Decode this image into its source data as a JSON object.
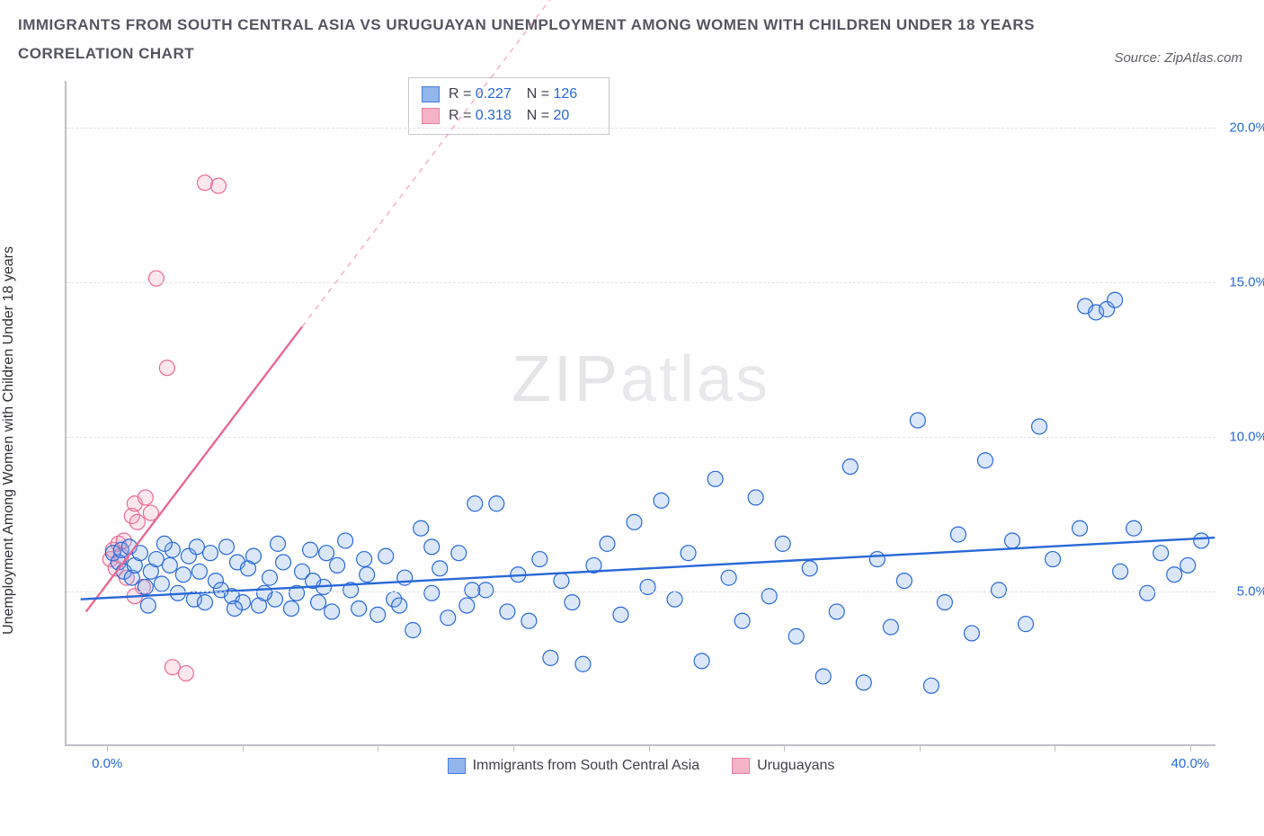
{
  "title_line1": "IMMIGRANTS FROM SOUTH CENTRAL ASIA VS URUGUAYAN UNEMPLOYMENT AMONG WOMEN WITH CHILDREN UNDER 18 YEARS",
  "title_line2": "CORRELATION CHART",
  "source_label": "Source: ZipAtlas.com",
  "y_axis_label": "Unemployment Among Women with Children Under 18 years",
  "watermark_a": "ZIP",
  "watermark_b": "atlas",
  "chart": {
    "type": "scatter",
    "background_color": "#ffffff",
    "grid_color": "#e2e2e8",
    "axis_color": "#bfbfc8",
    "tick_label_color": "#2968d8",
    "xlim": [
      -1.5,
      41
    ],
    "ylim": [
      0,
      21.5
    ],
    "y_ticks": [
      5,
      10,
      15,
      20
    ],
    "y_tick_labels": [
      "5.0%",
      "10.0%",
      "15.0%",
      "20.0%"
    ],
    "x_tick_positions": [
      0,
      5,
      10,
      15,
      20,
      25,
      30,
      35,
      40
    ],
    "x_tick_labels": {
      "0": "0.0%",
      "40": "40.0%"
    },
    "marker_radius": 8.5,
    "marker_stroke_width": 1.2,
    "marker_fill_opacity": 0.28,
    "trend_line_width": 2.4,
    "trend_dash_width": 1.4
  },
  "series": [
    {
      "key": "sca",
      "label": "Immigrants from South Central Asia",
      "fill_color": "#7fa9e8",
      "stroke_color": "#2968d8",
      "trend": {
        "x1": -1,
        "y1": 4.7,
        "x2": 41,
        "y2": 6.7,
        "dash_from_x": null
      },
      "stats": {
        "R": "0.227",
        "N": "126"
      },
      "points": [
        [
          0.2,
          6.2
        ],
        [
          0.4,
          5.9
        ],
        [
          0.5,
          6.3
        ],
        [
          0.6,
          5.6
        ],
        [
          0.8,
          6.4
        ],
        [
          0.9,
          5.4
        ],
        [
          1.0,
          5.8
        ],
        [
          1.2,
          6.2
        ],
        [
          1.4,
          5.1
        ],
        [
          1.6,
          5.6
        ],
        [
          1.8,
          6.0
        ],
        [
          2.0,
          5.2
        ],
        [
          2.3,
          5.8
        ],
        [
          2.4,
          6.3
        ],
        [
          2.6,
          4.9
        ],
        [
          2.8,
          5.5
        ],
        [
          3.0,
          6.1
        ],
        [
          3.2,
          4.7
        ],
        [
          3.4,
          5.6
        ],
        [
          3.6,
          4.6
        ],
        [
          3.8,
          6.2
        ],
        [
          4.0,
          5.3
        ],
        [
          4.2,
          5.0
        ],
        [
          4.4,
          6.4
        ],
        [
          4.6,
          4.8
        ],
        [
          4.8,
          5.9
        ],
        [
          5.0,
          4.6
        ],
        [
          5.2,
          5.7
        ],
        [
          5.4,
          6.1
        ],
        [
          5.6,
          4.5
        ],
        [
          6.0,
          5.4
        ],
        [
          6.2,
          4.7
        ],
        [
          6.5,
          5.9
        ],
        [
          6.8,
          4.4
        ],
        [
          7.0,
          4.9
        ],
        [
          7.2,
          5.6
        ],
        [
          7.5,
          6.3
        ],
        [
          7.8,
          4.6
        ],
        [
          8.0,
          5.1
        ],
        [
          8.3,
          4.3
        ],
        [
          8.5,
          5.8
        ],
        [
          8.8,
          6.6
        ],
        [
          9.0,
          5.0
        ],
        [
          9.3,
          4.4
        ],
        [
          9.6,
          5.5
        ],
        [
          10.0,
          4.2
        ],
        [
          10.3,
          6.1
        ],
        [
          10.6,
          4.7
        ],
        [
          11.0,
          5.4
        ],
        [
          11.3,
          3.7
        ],
        [
          11.6,
          7.0
        ],
        [
          12.0,
          4.9
        ],
        [
          12.3,
          5.7
        ],
        [
          12.6,
          4.1
        ],
        [
          13.0,
          6.2
        ],
        [
          13.3,
          4.5
        ],
        [
          13.6,
          7.8
        ],
        [
          14.0,
          5.0
        ],
        [
          14.4,
          7.8
        ],
        [
          14.8,
          4.3
        ],
        [
          15.2,
          5.5
        ],
        [
          15.6,
          4.0
        ],
        [
          16.0,
          6.0
        ],
        [
          16.4,
          2.8
        ],
        [
          16.8,
          5.3
        ],
        [
          17.2,
          4.6
        ],
        [
          17.6,
          2.6
        ],
        [
          18.0,
          5.8
        ],
        [
          18.5,
          6.5
        ],
        [
          19.0,
          4.2
        ],
        [
          19.5,
          7.2
        ],
        [
          20.0,
          5.1
        ],
        [
          20.5,
          7.9
        ],
        [
          21.0,
          4.7
        ],
        [
          21.5,
          6.2
        ],
        [
          22.0,
          2.7
        ],
        [
          22.5,
          8.6
        ],
        [
          23.0,
          5.4
        ],
        [
          23.5,
          4.0
        ],
        [
          24.0,
          8.0
        ],
        [
          24.5,
          4.8
        ],
        [
          25.0,
          6.5
        ],
        [
          25.5,
          3.5
        ],
        [
          26.0,
          5.7
        ],
        [
          26.5,
          2.2
        ],
        [
          27.0,
          4.3
        ],
        [
          27.5,
          9.0
        ],
        [
          28.0,
          2.0
        ],
        [
          28.5,
          6.0
        ],
        [
          29.0,
          3.8
        ],
        [
          29.5,
          5.3
        ],
        [
          30.0,
          10.5
        ],
        [
          30.5,
          1.9
        ],
        [
          31.0,
          4.6
        ],
        [
          31.5,
          6.8
        ],
        [
          32.0,
          3.6
        ],
        [
          32.5,
          9.2
        ],
        [
          33.0,
          5.0
        ],
        [
          33.5,
          6.6
        ],
        [
          34.0,
          3.9
        ],
        [
          34.5,
          10.3
        ],
        [
          35.0,
          6.0
        ],
        [
          36.0,
          7.0
        ],
        [
          36.2,
          14.2
        ],
        [
          36.6,
          14.0
        ],
        [
          37.0,
          14.1
        ],
        [
          37.3,
          14.4
        ],
        [
          37.5,
          5.6
        ],
        [
          38.0,
          7.0
        ],
        [
          38.5,
          4.9
        ],
        [
          39.0,
          6.2
        ],
        [
          39.5,
          5.5
        ],
        [
          40.0,
          5.8
        ],
        [
          40.5,
          6.6
        ],
        [
          1.5,
          4.5
        ],
        [
          2.1,
          6.5
        ],
        [
          3.3,
          6.4
        ],
        [
          4.7,
          4.4
        ],
        [
          5.8,
          4.9
        ],
        [
          6.3,
          6.5
        ],
        [
          7.6,
          5.3
        ],
        [
          8.1,
          6.2
        ],
        [
          9.5,
          6.0
        ],
        [
          10.8,
          4.5
        ],
        [
          12.0,
          6.4
        ],
        [
          13.5,
          5.0
        ]
      ]
    },
    {
      "key": "uru",
      "label": "Uruguayans",
      "fill_color": "#f4a8bd",
      "stroke_color": "#e86a93",
      "trend": {
        "x1": -0.8,
        "y1": 4.3,
        "x2": 18,
        "y2": 26,
        "dash_from_x": 7.2
      },
      "stats": {
        "R": "0.318",
        "N": "20"
      },
      "points": [
        [
          0.1,
          6.0
        ],
        [
          0.2,
          6.3
        ],
        [
          0.3,
          5.7
        ],
        [
          0.4,
          6.5
        ],
        [
          0.5,
          6.1
        ],
        [
          0.6,
          6.6
        ],
        [
          0.7,
          5.4
        ],
        [
          0.9,
          7.4
        ],
        [
          1.0,
          7.8
        ],
        [
          1.1,
          7.2
        ],
        [
          1.4,
          8.0
        ],
        [
          1.0,
          4.8
        ],
        [
          1.3,
          5.1
        ],
        [
          1.6,
          7.5
        ],
        [
          1.8,
          15.1
        ],
        [
          2.2,
          12.2
        ],
        [
          3.6,
          18.2
        ],
        [
          4.1,
          18.1
        ],
        [
          2.4,
          2.5
        ],
        [
          2.9,
          2.3
        ]
      ]
    }
  ],
  "stats_box": {
    "R_prefix": "R  = ",
    "N_prefix": "N  = "
  },
  "legend": {
    "label_a": "Immigrants from South Central Asia",
    "label_b": "Uruguayans"
  }
}
